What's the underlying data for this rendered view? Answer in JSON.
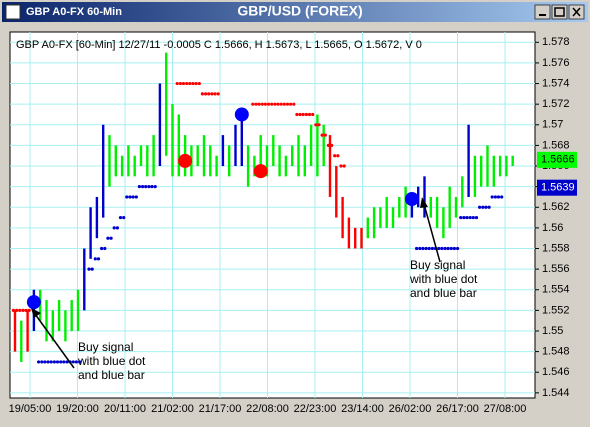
{
  "window": {
    "title": "GBP A0-FX 60-Min"
  },
  "chart_data": {
    "type": "ohlc",
    "title": "GBP/USD (FOREX)",
    "subtitle": "GBP A0-FX [60-Min] 12/27/11  -0.0005 C 1.5666, H 1.5673, L 1.5665, O 1.5672, V 0",
    "categories": [
      "19/05:00",
      "19/20:00",
      "20/11:00",
      "21/02:00",
      "21/17:00",
      "22/08:00",
      "22/23:00",
      "23/14:00",
      "26/02:00",
      "26/17:00",
      "27/08:00"
    ],
    "ylim": [
      1.5435,
      1.579
    ],
    "yticks": [
      1.578,
      1.576,
      1.574,
      1.572,
      1.57,
      1.568,
      1.566,
      1.564,
      1.562,
      1.56,
      1.558,
      1.556,
      1.554,
      1.552,
      1.55,
      1.548,
      1.546,
      1.544
    ],
    "grid": true,
    "high": [
      1.552,
      1.551,
      1.552,
      1.554,
      1.554,
      1.553,
      1.552,
      1.553,
      1.552,
      1.553,
      1.554,
      1.558,
      1.562,
      1.563,
      1.57,
      1.569,
      1.568,
      1.567,
      1.568,
      1.567,
      1.568,
      1.568,
      1.569,
      1.574,
      1.577,
      1.572,
      1.571,
      1.569,
      1.568,
      1.568,
      1.569,
      1.568,
      1.567,
      1.569,
      1.568,
      1.57,
      1.571,
      1.568,
      1.567,
      1.569,
      1.568,
      1.569,
      1.568,
      1.567,
      1.568,
      1.569,
      1.568,
      1.57,
      1.571,
      1.57,
      1.569,
      1.566,
      1.563,
      1.561,
      1.56,
      1.56,
      1.561,
      1.562,
      1.562,
      1.563,
      1.562,
      1.563,
      1.564,
      1.563,
      1.564,
      1.565,
      1.563,
      1.563,
      1.562,
      1.564,
      1.563,
      1.565,
      1.57,
      1.567,
      1.567,
      1.568,
      1.567,
      1.567,
      1.567,
      1.567
    ],
    "low": [
      1.548,
      1.547,
      1.548,
      1.55,
      1.551,
      1.549,
      1.549,
      1.55,
      1.549,
      1.55,
      1.55,
      1.552,
      1.557,
      1.559,
      1.561,
      1.564,
      1.565,
      1.565,
      1.565,
      1.565,
      1.566,
      1.565,
      1.565,
      1.566,
      1.567,
      1.565,
      1.565,
      1.565,
      1.565,
      1.566,
      1.565,
      1.565,
      1.565,
      1.566,
      1.565,
      1.566,
      1.566,
      1.564,
      1.565,
      1.565,
      1.565,
      1.566,
      1.565,
      1.565,
      1.566,
      1.565,
      1.565,
      1.566,
      1.565,
      1.566,
      1.563,
      1.561,
      1.559,
      1.558,
      1.558,
      1.558,
      1.559,
      1.559,
      1.56,
      1.56,
      1.56,
      1.561,
      1.561,
      1.561,
      1.562,
      1.561,
      1.561,
      1.56,
      1.559,
      1.56,
      1.561,
      1.562,
      1.563,
      1.563,
      1.564,
      1.564,
      1.564,
      1.565,
      1.565,
      1.566
    ],
    "bar_colors": [
      "#ff0000",
      "#00ee00",
      "#ff0000",
      "#0000cc",
      "#00ee00",
      "#00ee00",
      "#00ee00",
      "#00ee00",
      "#00ee00",
      "#00ee00",
      "#00ee00",
      "#0000cc",
      "#0000cc",
      "#0000cc",
      "#0000cc",
      "#00ee00",
      "#00ee00",
      "#00ee00",
      "#00ee00",
      "#00ee00",
      "#00ee00",
      "#00ee00",
      "#00ee00",
      "#0000cc",
      "#00ee00",
      "#00ee00",
      "#00ee00",
      "#00ee00",
      "#00ee00",
      "#00ee00",
      "#00ee00",
      "#00ee00",
      "#00ee00",
      "#0000cc",
      "#00ee00",
      "#0000cc",
      "#0000cc",
      "#00ee00",
      "#00ee00",
      "#00ee00",
      "#00ee00",
      "#00ee00",
      "#00ee00",
      "#00ee00",
      "#00ee00",
      "#00ee00",
      "#00ee00",
      "#00ee00",
      "#00ee00",
      "#00ee00",
      "#ff0000",
      "#ff0000",
      "#ff0000",
      "#ff0000",
      "#ff0000",
      "#ff0000",
      "#00ee00",
      "#00ee00",
      "#00ee00",
      "#00ee00",
      "#00ee00",
      "#00ee00",
      "#00ee00",
      "#0000cc",
      "#0000cc",
      "#0000cc",
      "#00ee00",
      "#00ee00",
      "#00ee00",
      "#00ee00",
      "#00ee00",
      "#00ee00",
      "#0000cc",
      "#00ee00",
      "#00ee00",
      "#00ee00",
      "#00ee00",
      "#00ee00",
      "#00ee00",
      "#00ee00"
    ],
    "resistance": {
      "color": "#ff0000",
      "values": [
        1.552,
        1.552,
        1.552,
        null,
        null,
        null,
        null,
        null,
        null,
        null,
        null,
        null,
        null,
        null,
        null,
        null,
        null,
        null,
        null,
        null,
        null,
        null,
        null,
        null,
        null,
        null,
        1.574,
        1.574,
        1.574,
        1.574,
        1.573,
        1.573,
        1.573,
        null,
        null,
        null,
        null,
        null,
        1.572,
        1.572,
        1.572,
        1.572,
        1.572,
        1.572,
        1.572,
        1.571,
        1.571,
        1.571,
        1.57,
        1.569,
        1.568,
        1.567,
        1.566,
        null,
        null,
        null,
        null,
        null,
        null,
        null,
        null,
        null,
        null,
        null,
        null,
        null,
        null,
        null,
        null,
        null,
        null,
        null,
        null,
        null,
        null,
        null,
        null,
        null,
        null,
        null
      ]
    },
    "support": {
      "color": "#0000cc",
      "values": [
        null,
        null,
        null,
        null,
        1.547,
        1.547,
        1.547,
        1.547,
        1.547,
        1.547,
        1.547,
        null,
        1.556,
        1.557,
        1.558,
        1.559,
        1.56,
        1.561,
        1.563,
        1.563,
        1.564,
        1.564,
        1.564,
        null,
        null,
        null,
        null,
        null,
        null,
        null,
        null,
        null,
        null,
        null,
        null,
        null,
        null,
        null,
        null,
        null,
        null,
        null,
        null,
        null,
        null,
        null,
        null,
        null,
        null,
        null,
        null,
        null,
        null,
        null,
        null,
        null,
        null,
        null,
        null,
        null,
        null,
        null,
        null,
        null,
        1.558,
        1.558,
        1.558,
        1.558,
        1.558,
        1.558,
        1.558,
        1.561,
        1.561,
        1.561,
        1.562,
        1.562,
        1.563,
        1.563,
        null,
        null
      ]
    },
    "signals": [
      {
        "index": 3,
        "value": 1.5528,
        "color": "#0000ff"
      },
      {
        "index": 27,
        "value": 1.5665,
        "color": "#ff0000"
      },
      {
        "index": 36,
        "value": 1.571,
        "color": "#0000ff"
      },
      {
        "index": 39,
        "value": 1.5655,
        "color": "#ff0000"
      },
      {
        "index": 63,
        "value": 1.5628,
        "color": "#0000ff"
      }
    ],
    "price_tags": [
      {
        "value": 1.5666,
        "color": "#00ff00",
        "text_color": "#000000"
      },
      {
        "value": 1.5639,
        "color": "#0000cc",
        "text_color": "#ffffff"
      }
    ],
    "annotations": [
      [
        "Buy signal",
        "with blue dot",
        "and blue bar"
      ],
      [
        "Buy signal",
        "with blue dot",
        "and blue bar"
      ]
    ]
  }
}
